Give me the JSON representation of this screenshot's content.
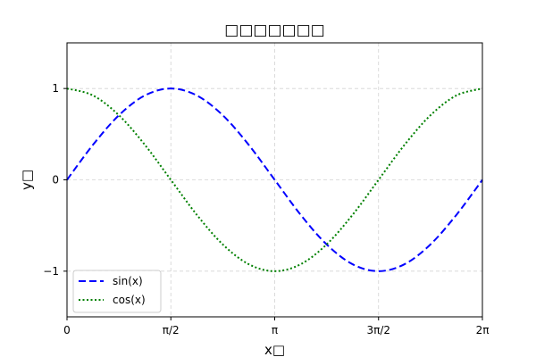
{
  "chart_data": {
    "type": "line",
    "title": "□□□□□□□",
    "xlabel": "x□",
    "ylabel": "y□",
    "xlim": [
      0,
      6.283185
    ],
    "ylim": [
      -1.5,
      1.5
    ],
    "grid": true,
    "legend_position": "lower-left",
    "x_ticks": [
      {
        "value": 0,
        "label": "0"
      },
      {
        "value": 1.570796,
        "label": "π/2"
      },
      {
        "value": 3.141593,
        "label": "π"
      },
      {
        "value": 4.712389,
        "label": "3π/2"
      },
      {
        "value": 6.283185,
        "label": "2π"
      }
    ],
    "y_ticks": [
      {
        "value": -1,
        "label": "−1"
      },
      {
        "value": 0,
        "label": "0"
      },
      {
        "value": 1,
        "label": "1"
      }
    ],
    "x": [
      0,
      0.392699,
      0.785398,
      1.178097,
      1.570796,
      1.963495,
      2.356194,
      2.748894,
      3.141593,
      3.534292,
      3.926991,
      4.31969,
      4.712389,
      5.105088,
      5.497787,
      5.890486,
      6.283185
    ],
    "series": [
      {
        "name": "sin(x)",
        "color": "#0000ff",
        "style": "dashed",
        "values": [
          0,
          0.383,
          0.707,
          0.924,
          1,
          0.924,
          0.707,
          0.383,
          0,
          -0.383,
          -0.707,
          -0.924,
          -1,
          -0.924,
          -0.707,
          -0.383,
          0
        ]
      },
      {
        "name": "cos(x)",
        "color": "#008000",
        "style": "dotted",
        "values": [
          1,
          0.924,
          0.707,
          0.383,
          0,
          -0.383,
          -0.707,
          -0.924,
          -1,
          -0.924,
          -0.707,
          -0.383,
          0,
          0.383,
          0.707,
          0.924,
          1
        ]
      }
    ]
  }
}
